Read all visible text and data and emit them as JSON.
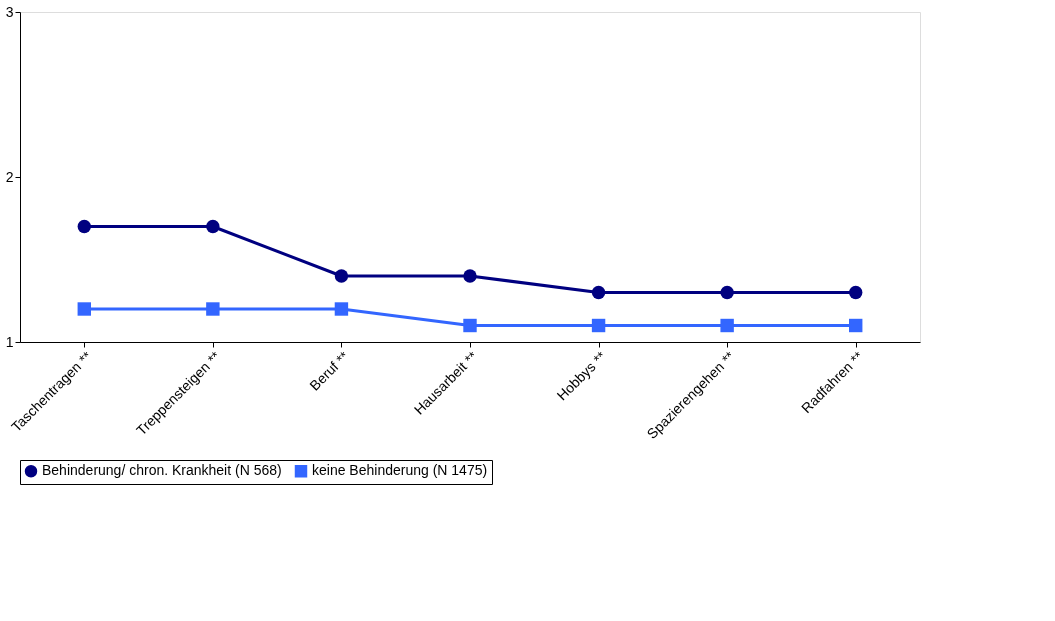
{
  "chart_data": {
    "type": "line",
    "categories": [
      "Taschentragen **",
      "Treppensteigen **",
      "Beruf **",
      "Hausarbeit **",
      "Hobbys **",
      "Spazierengehen **",
      "Radfahren **"
    ],
    "series": [
      {
        "name": "Behinderung/ chron. Krankheit (N 568)",
        "color": "#000080",
        "marker": "circle",
        "values": [
          1.7,
          1.7,
          1.4,
          1.4,
          1.3,
          1.3,
          1.3
        ]
      },
      {
        "name": "keine Behinderung (N 1475)",
        "color": "#3366ff",
        "marker": "square",
        "values": [
          1.2,
          1.2,
          1.2,
          1.1,
          1.1,
          1.1,
          1.1
        ]
      }
    ],
    "ylim": [
      1,
      3
    ],
    "yticks": [
      1,
      2,
      3
    ],
    "grid": false,
    "legend": "bottom",
    "line_style": "solid"
  }
}
